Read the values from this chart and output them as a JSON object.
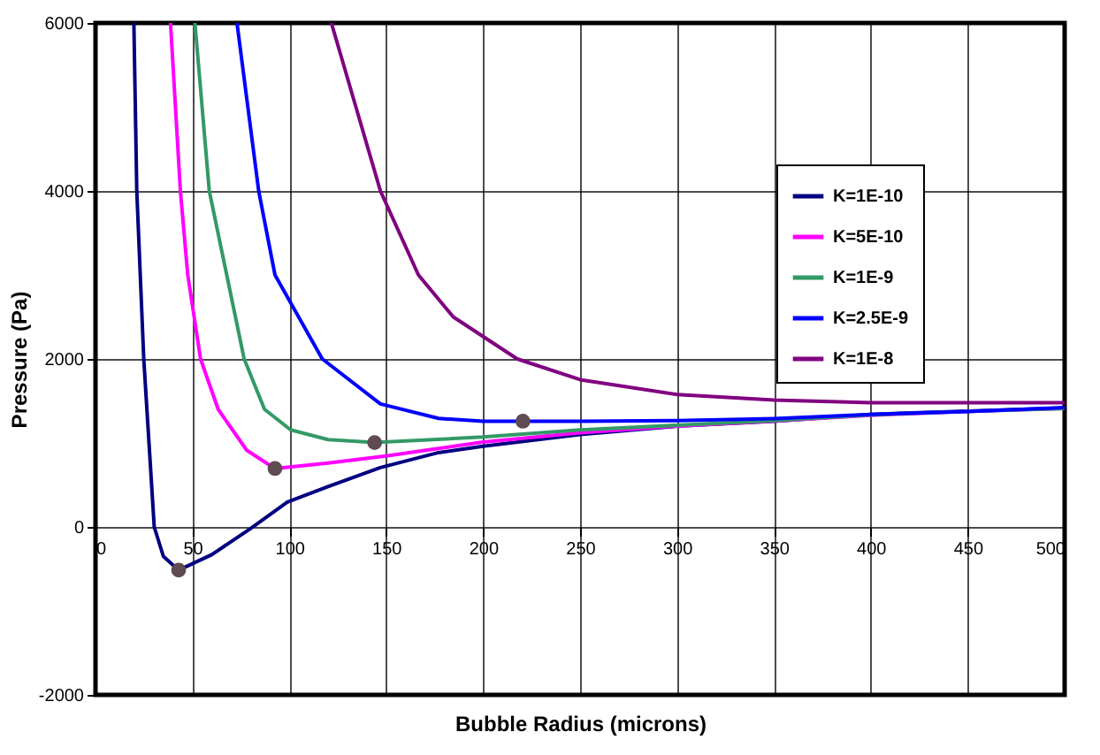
{
  "chart_data": {
    "type": "line",
    "xlabel": "Bubble Radius (microns)",
    "ylabel": "Pressure (Pa)",
    "xlim": [
      0,
      500
    ],
    "xticks": [
      0,
      50,
      100,
      150,
      200,
      250,
      300,
      350,
      400,
      450,
      500
    ],
    "ylim": [
      -2000,
      6000
    ],
    "yticks": [
      -2000,
      0,
      2000,
      4000,
      6000
    ],
    "grid": true,
    "legend": "top right",
    "series": [
      {
        "name": "K=1E-10",
        "color": "#000080",
        "x": [
          19.8,
          21.3,
          24.9,
          30.3,
          35,
          42.9,
          60,
          80,
          99,
          120,
          147,
          177,
          200,
          250,
          300,
          350,
          400,
          450,
          500
        ],
        "values": [
          6000,
          4000,
          2000,
          0,
          -350,
          -515,
          -330,
          -20,
          295,
          480,
          707,
          885,
          960,
          1100,
          1200,
          1258,
          1340,
          1380,
          1415
        ]
      },
      {
        "name": "K=5E-10",
        "color": "#ff00ff",
        "x": [
          38.7,
          43.8,
          47.6,
          54.2,
          63.3,
          78,
          92.6,
          120,
          150,
          200,
          250,
          300,
          350,
          400,
          450,
          500
        ],
        "values": [
          6000,
          4000,
          3000,
          2000,
          1400,
          913,
          695,
          760,
          845,
          1010,
          1120,
          1200,
          1260,
          1330,
          1375,
          1410
        ]
      },
      {
        "name": "K=1E-9",
        "color": "#339966",
        "x": [
          51.3,
          58.7,
          76.7,
          87.2,
          100.7,
          120,
          144,
          200,
          250,
          300,
          350,
          400,
          450,
          500
        ],
        "values": [
          6000,
          4000,
          2000,
          1400,
          1155,
          1040,
          1004,
          1070,
          1155,
          1210,
          1265,
          1335,
          1375,
          1410
        ]
      },
      {
        "name": "K=2.5E-9",
        "color": "#0000ff",
        "x": [
          73,
          84.2,
          92.6,
          117,
          147,
          177,
          200,
          220.5,
          250,
          300,
          350,
          400,
          450,
          500
        ],
        "values": [
          6000,
          4000,
          3000,
          2000,
          1464,
          1292,
          1258,
          1258,
          1258,
          1265,
          1290,
          1340,
          1375,
          1420
        ]
      },
      {
        "name": "K=1E-8",
        "color": "#800080",
        "x": [
          121.7,
          147,
          166.6,
          184.6,
          217.6,
          250,
          300,
          350,
          400,
          450,
          500
        ],
        "values": [
          6000,
          4000,
          3000,
          2500,
          2000,
          1753,
          1577,
          1510,
          1478,
          1478,
          1478
        ]
      },
      {
        "type": "scatter",
        "color": "#5f4b52",
        "x": [
          42.9,
          92.6,
          144,
          220.5
        ],
        "values": [
          -515,
          695,
          1004,
          1258
        ]
      }
    ]
  }
}
